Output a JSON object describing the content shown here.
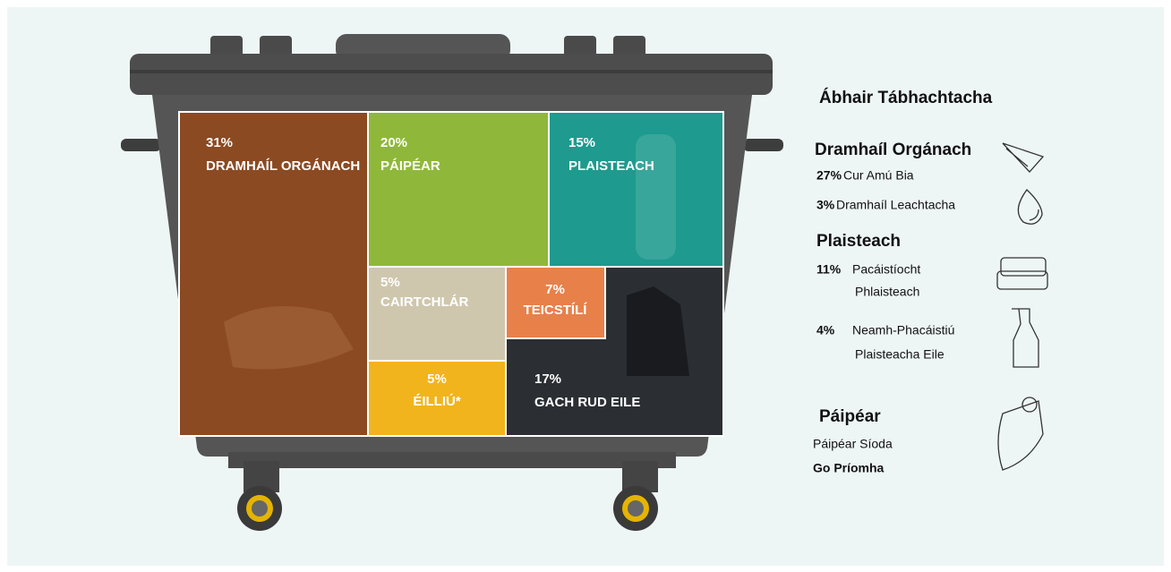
{
  "bin": {
    "segments": [
      {
        "percent": "31%",
        "label": "DRAMHAÍL ORGÁNACH"
      },
      {
        "percent": "20%",
        "label": "PÁIPÉAR"
      },
      {
        "percent": "15%",
        "label": "PLAISTEACH"
      },
      {
        "percent": "5%",
        "label": "CAIRTCHLÁR"
      },
      {
        "percent": "7%",
        "label": "TEICSTÍLÍ"
      },
      {
        "percent": "5%",
        "label": "ÉILLIÚ*"
      },
      {
        "percent": "17%",
        "label": "GACH RUD EILE"
      }
    ]
  },
  "key_materials": {
    "title": "Ábhair Tábhachtacha",
    "groups": [
      {
        "name": "Dramhaíl Orgánach",
        "items": [
          {
            "percent": "27%",
            "lines": [
              "Cur Amú Bia"
            ]
          },
          {
            "percent": "3%",
            "lines": [
              "Dramhaíl Leachtacha"
            ]
          }
        ]
      },
      {
        "name": "Plaisteach",
        "items": [
          {
            "percent": "11%",
            "lines": [
              "Pacáistíocht",
              "Phlaisteach"
            ]
          },
          {
            "percent": "4%",
            "lines": [
              "Neamh-Phacáistiú",
              "Plaisteacha Eile"
            ]
          }
        ]
      },
      {
        "name": "Páipéar",
        "items": [
          {
            "lines": [
              "Páipéar Síoda"
            ]
          },
          {
            "lines": [
              "Go Príomha"
            ]
          }
        ]
      }
    ]
  }
}
